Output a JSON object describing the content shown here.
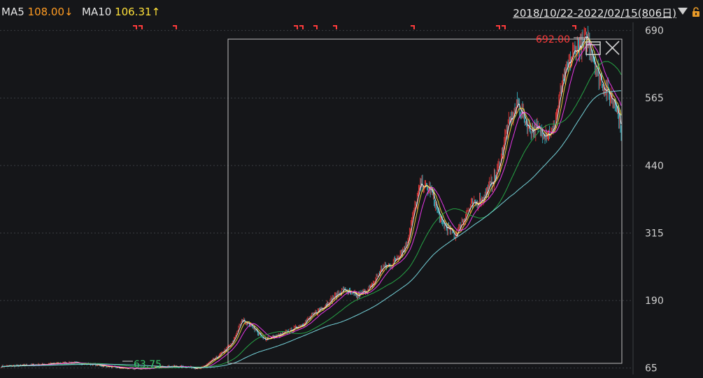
{
  "header": {
    "ma5_label": "MA5",
    "ma5_value": "108.00↓",
    "ma10_label": "MA10",
    "ma10_value": "106.31↑",
    "date_range": "2018/10/22-2022/02/15(806日)"
  },
  "colors": {
    "background": "#151619",
    "grid": "#3a3d42",
    "up": "#ff3b3b",
    "down": "#39c4d4",
    "ma5": "#ffffff",
    "ma10": "#ffe13a",
    "ma20": "#ff3cff",
    "ma60": "#28b44a",
    "ma120": "#7fe8f0",
    "high_label": "#ff3b3b",
    "low_label": "#38c66b",
    "selection": "#bfbfbf"
  },
  "icons": [
    "dropdown-icon",
    "lock-icon",
    "restore-icon",
    "close-icon"
  ],
  "chart_data": {
    "type": "candlestick",
    "y_ticks": [
      690,
      565,
      440,
      315,
      190,
      65
    ],
    "y_tick_labels": [
      "690",
      "565",
      "440",
      "315",
      "190",
      "65"
    ],
    "ylim": [
      53,
      705
    ],
    "x_range": [
      "2018/10/22",
      "2022/02/15"
    ],
    "trading_days": 806,
    "high_marker": "692.00",
    "low_marker": "63.75",
    "close_trend": [
      [
        0,
        68
      ],
      [
        50,
        71
      ],
      [
        100,
        75
      ],
      [
        130,
        72
      ],
      [
        170,
        65
      ],
      [
        200,
        63.75
      ],
      [
        240,
        68
      ],
      [
        270,
        67
      ],
      [
        285,
        64
      ],
      [
        310,
        86
      ],
      [
        330,
        110
      ],
      [
        345,
        155
      ],
      [
        360,
        142
      ],
      [
        375,
        118
      ],
      [
        400,
        126
      ],
      [
        430,
        145
      ],
      [
        460,
        178
      ],
      [
        490,
        210
      ],
      [
        510,
        198
      ],
      [
        530,
        215
      ],
      [
        545,
        250
      ],
      [
        560,
        258
      ],
      [
        580,
        292
      ],
      [
        600,
        405
      ],
      [
        615,
        395
      ],
      [
        630,
        335
      ],
      [
        650,
        310
      ],
      [
        670,
        360
      ],
      [
        690,
        380
      ],
      [
        710,
        425
      ],
      [
        725,
        510
      ],
      [
        740,
        555
      ],
      [
        755,
        510
      ],
      [
        770,
        505
      ],
      [
        790,
        500
      ],
      [
        805,
        600
      ],
      [
        820,
        650
      ],
      [
        840,
        675
      ],
      [
        855,
        610
      ],
      [
        870,
        570
      ],
      [
        880,
        560
      ],
      [
        888,
        505
      ]
    ],
    "ma_lines": [
      {
        "name": "MA5",
        "values": [
          [
            0,
            68
          ],
          [
            100,
            74
          ],
          [
            200,
            66
          ],
          [
            285,
            66
          ],
          [
            345,
            145
          ],
          [
            375,
            124
          ],
          [
            460,
            170
          ],
          [
            510,
            202
          ],
          [
            560,
            252
          ],
          [
            600,
            390
          ],
          [
            630,
            338
          ],
          [
            650,
            318
          ],
          [
            710,
            420
          ],
          [
            740,
            540
          ],
          [
            770,
            508
          ],
          [
            805,
            590
          ],
          [
            840,
            668
          ],
          [
            870,
            575
          ],
          [
            888,
            520
          ]
        ]
      },
      {
        "name": "MA10",
        "values": [
          [
            0,
            68
          ],
          [
            100,
            73
          ],
          [
            200,
            67
          ],
          [
            285,
            66
          ],
          [
            345,
            138
          ],
          [
            375,
            126
          ],
          [
            460,
            165
          ],
          [
            510,
            200
          ],
          [
            560,
            248
          ],
          [
            600,
            378
          ],
          [
            635,
            345
          ],
          [
            655,
            322
          ],
          [
            710,
            410
          ],
          [
            745,
            535
          ],
          [
            775,
            510
          ],
          [
            810,
            580
          ],
          [
            845,
            660
          ],
          [
            875,
            580
          ],
          [
            888,
            540
          ]
        ]
      }
    ]
  }
}
